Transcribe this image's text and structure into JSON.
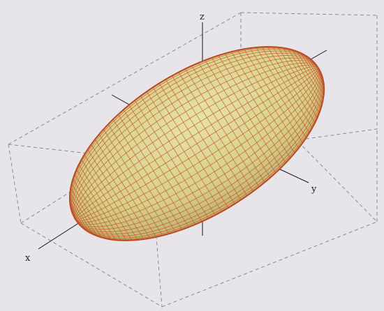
{
  "axes": {
    "x": "x",
    "y": "y",
    "z": "z"
  }
}
